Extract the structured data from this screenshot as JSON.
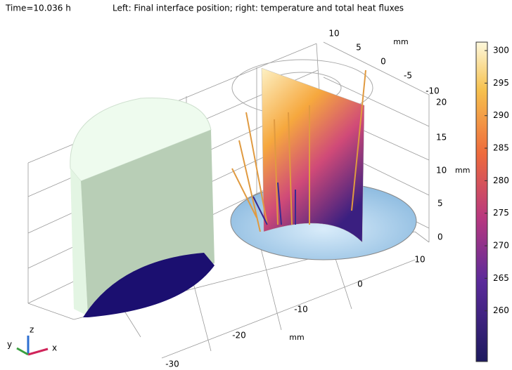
{
  "header": {
    "time": "Time=10.036 h",
    "title": "Left: Final interface position; right: temperature and total heat fluxes"
  },
  "axes": {
    "back": {
      "ticks": [
        10,
        5,
        0,
        -5,
        -10
      ],
      "unit": "mm"
    },
    "vertical": {
      "ticks": [
        20,
        15,
        10,
        5,
        0
      ],
      "unit": "mm"
    },
    "front": {
      "ticks": [
        10,
        0,
        -10,
        -20,
        -30
      ],
      "unit": "mm"
    }
  },
  "triad": {
    "z": "z",
    "y": "y",
    "x": "x"
  },
  "colorbar": {
    "lim": [
      252.2,
      301.3
    ],
    "ticks": [
      260,
      265,
      270,
      275,
      280,
      285,
      290,
      295,
      300
    ]
  }
}
